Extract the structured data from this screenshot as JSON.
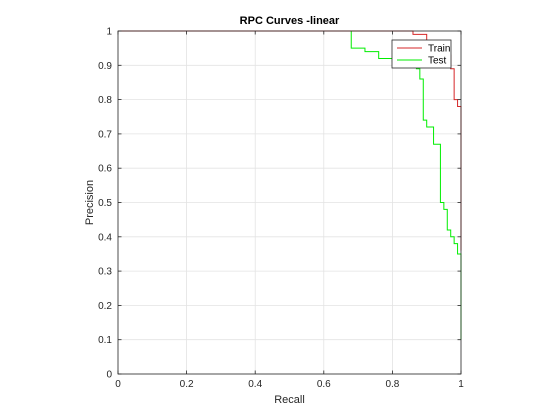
{
  "chart_data": {
    "type": "line",
    "title": "RPC Curves -linear",
    "xlabel": "Recall",
    "ylabel": "Precision",
    "xlim": [
      0,
      1
    ],
    "ylim": [
      0,
      1
    ],
    "xticks": [
      "0",
      "0.2",
      "0.4",
      "0.6",
      "0.8",
      "1"
    ],
    "yticks": [
      "0",
      "0.1",
      "0.2",
      "0.3",
      "0.4",
      "0.5",
      "0.6",
      "0.7",
      "0.8",
      "0.9",
      "1"
    ],
    "grid": true,
    "legend_position": "top-right",
    "series": [
      {
        "name": "Train",
        "color": "#d62728",
        "x": [
          0,
          0.86,
          0.86,
          0.9,
          0.9,
          0.96,
          0.96,
          0.97,
          0.97,
          0.98,
          0.98,
          0.99,
          0.99,
          1.0,
          1.0
        ],
        "y": [
          1,
          1,
          0.99,
          0.99,
          0.95,
          0.95,
          0.93,
          0.93,
          0.89,
          0.89,
          0.8,
          0.8,
          0.78,
          0.78,
          0.36
        ]
      },
      {
        "name": "Test",
        "color": "#00ee00",
        "x": [
          0,
          0.68,
          0.68,
          0.72,
          0.72,
          0.76,
          0.76,
          0.8,
          0.8,
          0.85,
          0.85,
          0.87,
          0.87,
          0.88,
          0.88,
          0.89,
          0.89,
          0.9,
          0.9,
          0.92,
          0.92,
          0.94,
          0.94,
          0.95,
          0.95,
          0.96,
          0.96,
          0.97,
          0.97,
          0.98,
          0.98,
          0.99,
          0.99,
          1.0,
          1.0
        ],
        "y": [
          1,
          1,
          0.95,
          0.95,
          0.94,
          0.94,
          0.92,
          0.92,
          0.91,
          0.91,
          0.9,
          0.9,
          0.89,
          0.89,
          0.86,
          0.86,
          0.74,
          0.74,
          0.72,
          0.72,
          0.67,
          0.67,
          0.5,
          0.5,
          0.48,
          0.48,
          0.42,
          0.42,
          0.4,
          0.4,
          0.38,
          0.38,
          0.35,
          0.35,
          0.1
        ]
      }
    ]
  }
}
